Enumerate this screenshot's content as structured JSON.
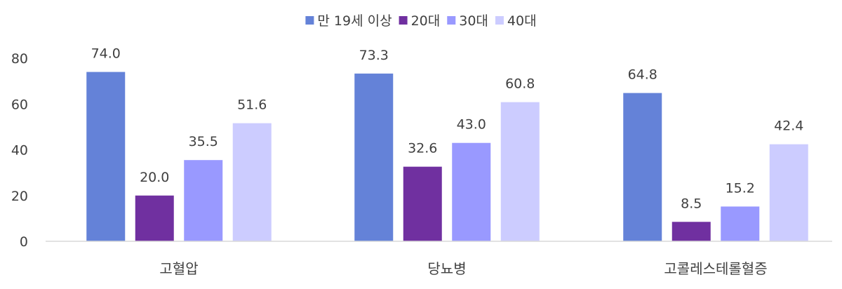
{
  "chart_data": {
    "type": "bar",
    "title": "",
    "xlabel": "",
    "ylabel": "",
    "ylim": [
      0,
      80
    ],
    "yticks": [
      0,
      20,
      40,
      60,
      80
    ],
    "grid": false,
    "legend_position": "top",
    "categories": [
      "고혈압",
      "당뇨병",
      "고콜레스테롤혈증"
    ],
    "series": [
      {
        "name": "만 19세 이상",
        "color": "#6482d8",
        "values": [
          74.0,
          73.3,
          64.8
        ],
        "labels": [
          "74.0",
          "73.3",
          "64.8"
        ]
      },
      {
        "name": "20대",
        "color": "#7030a0",
        "values": [
          20.0,
          32.6,
          8.5
        ],
        "labels": [
          "20.0",
          "32.6",
          "8.5"
        ]
      },
      {
        "name": "30대",
        "color": "#9999ff",
        "values": [
          35.5,
          43.0,
          15.2
        ],
        "labels": [
          "35.5",
          "43.0",
          "15.2"
        ]
      },
      {
        "name": "40대",
        "color": "#ccccff",
        "values": [
          51.6,
          60.8,
          42.4
        ],
        "labels": [
          "51.6",
          "60.8",
          "42.4"
        ]
      }
    ]
  }
}
